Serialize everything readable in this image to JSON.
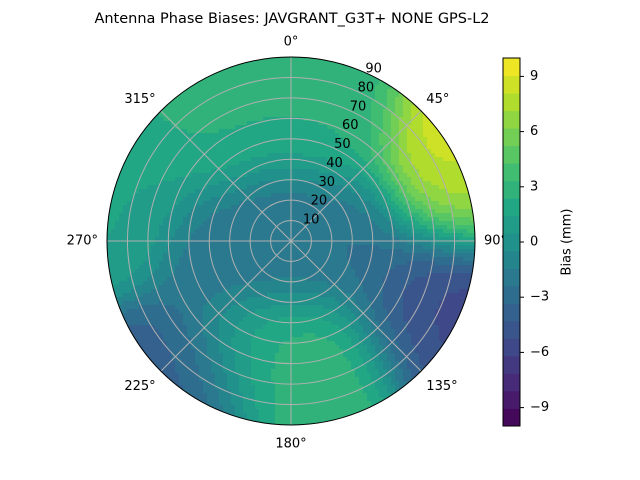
{
  "chart_data": {
    "type": "heatmap",
    "projection": "polar",
    "title": "Antenna Phase Biases: JAVGRANT_G3T+   NONE GPS-L2",
    "azimuth_ticks": [
      "0°",
      "45°",
      "90°",
      "135°",
      "180°",
      "225°",
      "270°",
      "315°"
    ],
    "radial_ticks": [
      "10",
      "20",
      "30",
      "40",
      "50",
      "60",
      "70",
      "80",
      "90"
    ],
    "radial_range": [
      0,
      90
    ],
    "colorbar": {
      "label": "Bias (mm)",
      "range": [
        -10,
        10
      ],
      "ticks": [
        "−9",
        "−6",
        "−3",
        "0",
        "3",
        "6",
        "9"
      ],
      "tick_values": [
        -9,
        -6,
        -3,
        0,
        3,
        6,
        9
      ],
      "colormap": "viridis"
    },
    "grid": true,
    "field_features": [
      {
        "azimuth": 0,
        "zenith": 0,
        "bias": -2.5
      },
      {
        "azimuth": 20,
        "zenith": 60,
        "bias": 2.5
      },
      {
        "azimuth": 325,
        "zenith": 65,
        "bias": 2.5
      },
      {
        "azimuth": 62,
        "zenith": 90,
        "bias": 9.5
      },
      {
        "azimuth": 75,
        "zenith": 88,
        "bias": 6.5
      },
      {
        "azimuth": 110,
        "zenith": 85,
        "bias": -7.0
      },
      {
        "azimuth": 118,
        "zenith": 72,
        "bias": -4.0
      },
      {
        "azimuth": 165,
        "zenith": 60,
        "bias": 3.5
      },
      {
        "azimuth": 195,
        "zenith": 55,
        "bias": 2.5
      },
      {
        "azimuth": 220,
        "zenith": 85,
        "bias": -4.0
      },
      {
        "azimuth": 260,
        "zenith": 30,
        "bias": -2.5
      },
      {
        "azimuth": 280,
        "zenith": 85,
        "bias": 1.5
      },
      {
        "azimuth": 90,
        "zenith": 30,
        "bias": -2.5
      }
    ]
  }
}
